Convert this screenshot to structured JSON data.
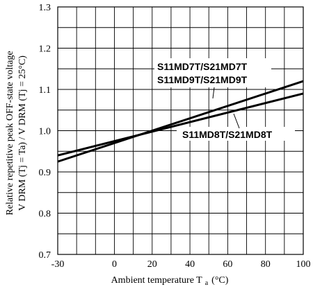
{
  "chart_data": {
    "type": "line",
    "xlabel": "Ambient temperature T",
    "xlabel_sub": "a",
    "xlabel_unit": "(°C)",
    "ylabel_line1": "Relative repetitive peak OFF-state voltage",
    "ylabel_line2": "V DRM (Tj = Ta) / V DRM (Tj = 25°C)",
    "xlim": [
      -30,
      100
    ],
    "ylim": [
      0.7,
      1.3
    ],
    "x_ticks": [
      -30,
      0,
      20,
      40,
      60,
      80,
      100
    ],
    "x_tick_labels": [
      "-30",
      "0",
      "20",
      "40",
      "60",
      "80",
      "100"
    ],
    "y_ticks": [
      0.7,
      0.8,
      0.9,
      1.0,
      1.1,
      1.2,
      1.3
    ],
    "y_tick_labels": [
      "0.7",
      "0.8",
      "0.9",
      "1.0",
      "1.1",
      "1.2",
      "1.3"
    ],
    "x_grid_step": 10,
    "y_grid_step": 0.05,
    "grid": true,
    "series": [
      {
        "name": "S11MD7T/S21MD7T S11MD9T/S21MD9T",
        "x": [
          -30,
          100
        ],
        "y": [
          0.925,
          1.12
        ]
      },
      {
        "name": "S11MD8T/S21MD8T",
        "x": [
          -30,
          100
        ],
        "y": [
          0.94,
          1.09
        ]
      }
    ],
    "annotations": {
      "label_a_line1": "S11MD7T/S21MD7T",
      "label_a_line2": "S11MD9T/S21MD9T",
      "label_b": "S11MD8T/S21MD8T"
    }
  }
}
